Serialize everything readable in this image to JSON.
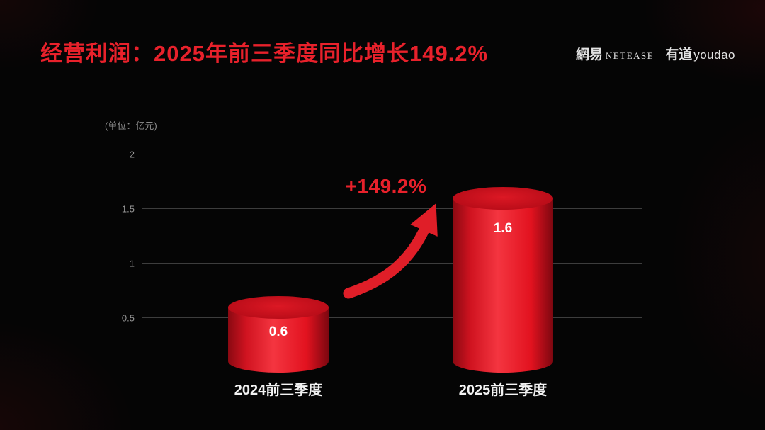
{
  "header": {
    "title": "经营利润：2025年前三季度同比增长149.2%",
    "netease_cn": "網易",
    "netease_en": "NETEASE",
    "youdao_cn": "有道",
    "youdao_en": "youdao"
  },
  "chart_data": {
    "type": "bar",
    "title": "经营利润：2025年前三季度同比增长149.2%",
    "unit_label": "(单位：亿元)",
    "categories": [
      "2024前三季度",
      "2025前三季度"
    ],
    "values": [
      0.6,
      1.6
    ],
    "value_labels": [
      "0.6",
      "1.6"
    ],
    "annotation": "+149.2%",
    "xlabel": "",
    "ylabel": "",
    "ylim": [
      0,
      2
    ],
    "yticks": [
      0.5,
      1,
      1.5,
      2
    ],
    "ytick_labels": [
      "0.5",
      "1",
      "1.5",
      "2"
    ],
    "grid": true,
    "legend": false,
    "colors": {
      "accent_red": "#e8212b",
      "bar_red": "#e2121f",
      "background": "#050505",
      "gridline": "#3d3d3d",
      "tick_text": "#969696",
      "value_text": "#ffffff"
    }
  }
}
